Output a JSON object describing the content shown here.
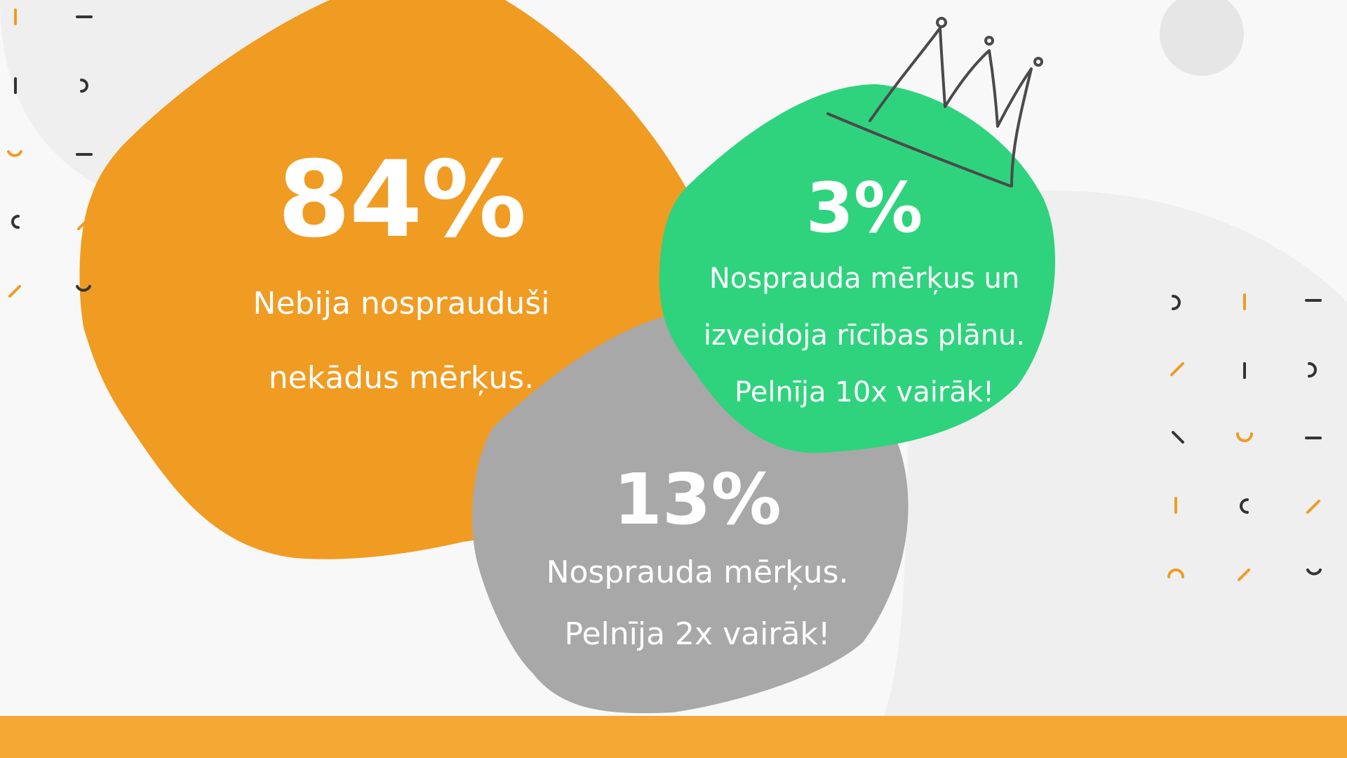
{
  "colors": {
    "background": "#f8f8f8",
    "background_blob": "#efefef",
    "orange": "#f09b22",
    "green": "#2fd37d",
    "gray": "#a8a8a8",
    "bar": "#f4a833",
    "text": "#ffffff",
    "accent_dark": "#333333"
  },
  "stats": {
    "no_goals": {
      "percent": "84%",
      "line1": "Nebija nosprauduši",
      "line2": "nekādus mērķus."
    },
    "goals_and_plan": {
      "percent": "3%",
      "line1": "Nosprauda mērķus un",
      "line2": "izveidoja rīcības plānu.",
      "line3": "Pelnīja 10x vairāk!"
    },
    "goals_only": {
      "percent": "13%",
      "line1": "Nosprauda mērķus.",
      "line2": "Pelnīja 2x vairāk!"
    }
  },
  "decor": {
    "crown_icon": "crown-doodle",
    "pattern_icon": "confetti-marks"
  }
}
